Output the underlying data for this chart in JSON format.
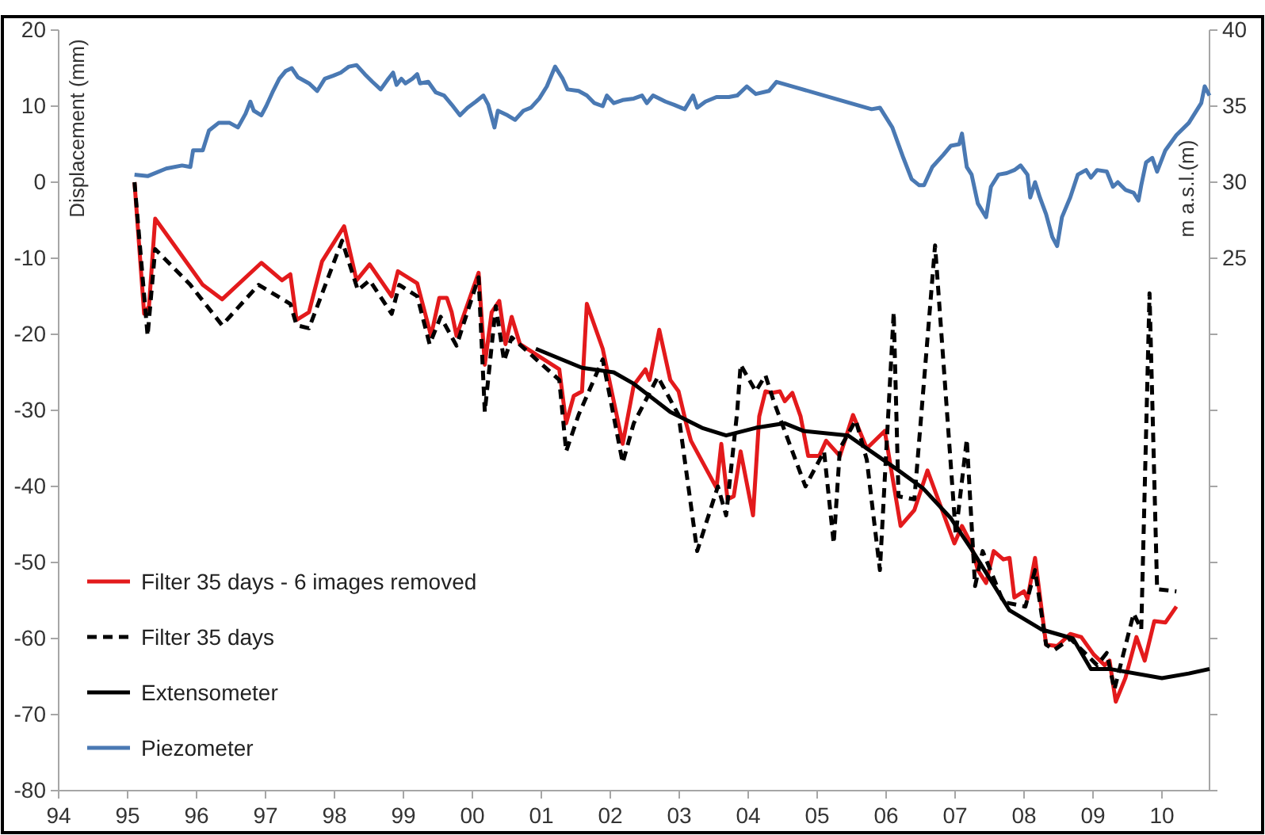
{
  "chart_data": {
    "type": "line",
    "xlabel": null,
    "ylabel": "Displacement (mm)",
    "y2label": "m a.s.l.(m)",
    "legend": "bottom left",
    "grid": false,
    "marker": "none",
    "xlim": [
      1994,
      2010.69
    ],
    "xticks": [
      {
        "value": 1994,
        "label": "94"
      },
      {
        "value": 1995,
        "label": "95"
      },
      {
        "value": 1996,
        "label": "96"
      },
      {
        "value": 1997,
        "label": "97"
      },
      {
        "value": 1998,
        "label": "98"
      },
      {
        "value": 1999,
        "label": "99"
      },
      {
        "value": 2000,
        "label": "00"
      },
      {
        "value": 2001,
        "label": "01"
      },
      {
        "value": 2002,
        "label": "02"
      },
      {
        "value": 2003,
        "label": "03"
      },
      {
        "value": 2004,
        "label": "04"
      },
      {
        "value": 2005,
        "label": "05"
      },
      {
        "value": 2006,
        "label": "06"
      },
      {
        "value": 2007,
        "label": "07"
      },
      {
        "value": 2008,
        "label": "08"
      },
      {
        "value": 2009,
        "label": "09"
      },
      {
        "value": 2010,
        "label": "10"
      }
    ],
    "ylim": [
      -80,
      20
    ],
    "yticks": [
      -80,
      -70,
      -60,
      -50,
      -40,
      -30,
      -20,
      -10,
      0,
      10,
      20
    ],
    "y2lim": [
      -10,
      40
    ],
    "y2ticks": [
      {
        "value": -10,
        "label": null
      },
      {
        "value": -5,
        "label": null
      },
      {
        "value": 0,
        "label": null
      },
      {
        "value": 5,
        "label": null
      },
      {
        "value": 10,
        "label": null
      },
      {
        "value": 15,
        "label": null
      },
      {
        "value": 20,
        "label": null
      },
      25,
      30,
      35,
      40
    ],
    "series": [
      {
        "name": "Filter 35 days - 6 images removed",
        "color": "#e31a1c",
        "line_style": "solid",
        "x": [
          1995.1,
          1995.24,
          1995.31,
          1995.4,
          1996.09,
          1996.37,
          1996.94,
          1997.24,
          1997.36,
          1997.45,
          1997.63,
          1997.82,
          1998.14,
          1998.32,
          1998.51,
          1998.83,
          1998.92,
          1999.2,
          1999.4,
          1999.52,
          1999.63,
          1999.7,
          1999.77,
          2000.09,
          2000.18,
          2000.28,
          2000.39,
          2000.48,
          2000.57,
          2000.69,
          2001.26,
          2001.36,
          2001.47,
          2001.59,
          2001.66,
          2001.89,
          2002.18,
          2002.34,
          2002.51,
          2002.57,
          2002.71,
          2002.87,
          2002.99,
          2003.1,
          2003.17,
          2003.54,
          2003.61,
          2003.7,
          2003.79,
          2003.89,
          2004.07,
          2004.16,
          2004.25,
          2004.34,
          2004.46,
          2004.53,
          2004.64,
          2004.76,
          2004.87,
          2005.03,
          2005.13,
          2005.33,
          2005.52,
          2005.72,
          2005.98,
          2006.21,
          2006.41,
          2006.6,
          2006.99,
          2007.1,
          2007.22,
          2007.33,
          2007.45,
          2007.56,
          2007.7,
          2007.79,
          2007.86,
          2008.0,
          2008.05,
          2008.16,
          2008.32,
          2008.48,
          2008.67,
          2008.83,
          2009.01,
          2009.17,
          2009.24,
          2009.33,
          2009.47,
          2009.63,
          2009.75,
          2009.89,
          2010.05,
          2010.21
        ],
        "values": [
          0,
          -17.3,
          -16.3,
          -4.8,
          -13.5,
          -15.4,
          -10.6,
          -12.9,
          -12.1,
          -18.1,
          -17.1,
          -10.4,
          -5.8,
          -12.9,
          -10.8,
          -15.0,
          -11.7,
          -13.3,
          -20.2,
          -15.2,
          -15.2,
          -17.1,
          -20.2,
          -11.9,
          -24.0,
          -17.1,
          -15.6,
          -21.3,
          -17.7,
          -21.3,
          -24.6,
          -31.7,
          -28.1,
          -27.5,
          -16.0,
          -21.9,
          -34.4,
          -26.7,
          -24.6,
          -26.0,
          -19.4,
          -26.0,
          -27.5,
          -31.7,
          -34.0,
          -40.2,
          -34.4,
          -41.7,
          -41.3,
          -35.4,
          -43.8,
          -30.8,
          -27.5,
          -27.7,
          -27.5,
          -28.8,
          -27.7,
          -30.8,
          -36.0,
          -36.0,
          -34.0,
          -36.0,
          -30.6,
          -35.0,
          -32.7,
          -45.2,
          -43.1,
          -37.9,
          -47.5,
          -45.2,
          -47.3,
          -51.0,
          -52.7,
          -48.5,
          -49.6,
          -49.4,
          -54.6,
          -53.8,
          -54.8,
          -49.4,
          -60.8,
          -61.0,
          -59.4,
          -59.8,
          -62.1,
          -63.5,
          -62.9,
          -68.3,
          -65.2,
          -59.8,
          -62.9,
          -57.7,
          -57.9,
          -55.8
        ]
      },
      {
        "name": "Filter 35 days",
        "color": "#000000",
        "line_style": "dashed",
        "x": [
          1995.1,
          1995.29,
          1995.4,
          1995.91,
          1996.37,
          1996.9,
          1997.36,
          1997.45,
          1997.63,
          1998.11,
          1998.34,
          1998.51,
          1998.83,
          1998.94,
          1999.2,
          1999.38,
          1999.54,
          1999.77,
          2000.09,
          2000.18,
          2000.34,
          2000.46,
          2000.57,
          2001.26,
          2001.36,
          2001.54,
          2001.66,
          2001.89,
          2002.18,
          2002.34,
          2002.69,
          2002.99,
          2003.26,
          2003.56,
          2003.68,
          2003.84,
          2003.89,
          2004.11,
          2004.25,
          2004.37,
          2004.83,
          2005.1,
          2005.24,
          2005.33,
          2005.56,
          2005.72,
          2005.91,
          2006.11,
          2006.18,
          2006.41,
          2006.71,
          2007.01,
          2007.17,
          2007.29,
          2007.4,
          2007.7,
          2008.02,
          2008.16,
          2008.32,
          2008.44,
          2008.67,
          2009.06,
          2009.2,
          2009.31,
          2009.59,
          2009.7,
          2009.82,
          2009.93,
          2010.21
        ],
        "values": [
          0,
          -20.2,
          -8.8,
          -13.5,
          -18.8,
          -13.5,
          -16.0,
          -18.8,
          -19.2,
          -7.7,
          -14.2,
          -12.9,
          -17.3,
          -13.5,
          -15.0,
          -21.3,
          -17.7,
          -21.5,
          -12.5,
          -30.2,
          -16.3,
          -23.5,
          -20.4,
          -26.0,
          -35.4,
          -30.6,
          -28.1,
          -23.3,
          -36.9,
          -31.7,
          -25.6,
          -30.6,
          -48.5,
          -40.0,
          -43.8,
          -30.2,
          -24.0,
          -27.5,
          -25.4,
          -28.8,
          -40.0,
          -35.4,
          -47.5,
          -35.0,
          -31.3,
          -36.5,
          -51.0,
          -17.1,
          -41.3,
          -41.7,
          -8.3,
          -46.3,
          -33.8,
          -53.1,
          -48.5,
          -55.2,
          -55.8,
          -51.0,
          -60.8,
          -61.5,
          -60.0,
          -63.5,
          -61.9,
          -66.7,
          -56.7,
          -58.8,
          -14.6,
          -53.5,
          -53.8
        ]
      },
      {
        "name": "Extensometer",
        "color": "#000000",
        "line_style": "solid",
        "x": [
          2000.92,
          2001.59,
          2002.05,
          2002.34,
          2002.87,
          2003.33,
          2003.68,
          2004.11,
          2004.53,
          2004.8,
          2005.45,
          2006.18,
          2006.53,
          2006.94,
          2007.24,
          2007.79,
          2008.25,
          2008.71,
          2008.97,
          2009.24,
          2010.0,
          2010.39,
          2010.69
        ],
        "values": [
          -21.9,
          -24.4,
          -25.0,
          -26.5,
          -30.2,
          -32.3,
          -33.3,
          -32.3,
          -31.7,
          -32.7,
          -33.3,
          -37.9,
          -40.2,
          -44.2,
          -48.3,
          -56.3,
          -58.8,
          -60.0,
          -64.0,
          -64.0,
          -65.2,
          -64.6,
          -64.0
        ]
      },
      {
        "name": "Piezometer",
        "color": "#4a79b3",
        "line_style": "solid",
        "axis": "y2",
        "x": [
          1995.1,
          1995.29,
          1995.56,
          1995.79,
          1995.91,
          1995.95,
          1996.09,
          1996.18,
          1996.32,
          1996.48,
          1996.6,
          1996.71,
          1996.78,
          1996.83,
          1996.94,
          1997.01,
          1997.1,
          1997.2,
          1997.29,
          1997.38,
          1997.47,
          1997.63,
          1997.75,
          1997.86,
          1997.98,
          1998.09,
          1998.21,
          1998.32,
          1998.44,
          1998.55,
          1998.67,
          1998.78,
          1998.85,
          1998.9,
          1998.97,
          1999.03,
          1999.13,
          1999.2,
          1999.24,
          1999.36,
          1999.47,
          1999.59,
          1999.7,
          1999.82,
          1999.93,
          2000.05,
          2000.16,
          2000.23,
          2000.32,
          2000.37,
          2000.51,
          2000.62,
          2000.74,
          2000.85,
          2000.97,
          2001.08,
          2001.2,
          2001.31,
          2001.38,
          2001.54,
          2001.66,
          2001.77,
          2001.89,
          2001.95,
          2002.05,
          2002.18,
          2002.34,
          2002.46,
          2002.53,
          2002.62,
          2002.8,
          2002.92,
          2003.08,
          2003.2,
          2003.26,
          2003.38,
          2003.54,
          2003.72,
          2003.84,
          2003.98,
          2004.11,
          2004.3,
          2004.41,
          2004.64,
          2005.1,
          2005.56,
          2005.79,
          2005.91,
          2006.09,
          2006.25,
          2006.37,
          2006.48,
          2006.55,
          2006.67,
          2006.83,
          2006.94,
          2007.06,
          2007.1,
          2007.17,
          2007.24,
          2007.33,
          2007.45,
          2007.52,
          2007.63,
          2007.75,
          2007.86,
          2007.95,
          2008.05,
          2008.09,
          2008.16,
          2008.23,
          2008.32,
          2008.41,
          2008.48,
          2008.55,
          2008.67,
          2008.78,
          2008.9,
          2008.97,
          2009.06,
          2009.2,
          2009.29,
          2009.36,
          2009.47,
          2009.59,
          2009.66,
          2009.7,
          2009.77,
          2009.86,
          2009.93,
          2010.05,
          2010.21,
          2010.39,
          2010.57,
          2010.62,
          2010.69
        ],
        "values": [
          30.5,
          30.4,
          30.9,
          31.1,
          31.0,
          32.1,
          32.1,
          33.4,
          33.9,
          33.9,
          33.6,
          34.5,
          35.3,
          34.7,
          34.4,
          35.0,
          35.9,
          36.8,
          37.3,
          37.5,
          36.9,
          36.5,
          36.0,
          36.8,
          37.0,
          37.2,
          37.6,
          37.7,
          37.1,
          36.6,
          36.1,
          36.8,
          37.2,
          36.4,
          36.8,
          36.5,
          36.8,
          37.1,
          36.5,
          36.6,
          35.9,
          35.7,
          35.1,
          34.4,
          34.9,
          35.3,
          35.7,
          35.1,
          33.6,
          34.7,
          34.4,
          34.1,
          34.7,
          34.9,
          35.5,
          36.3,
          37.6,
          36.8,
          36.1,
          36.0,
          35.7,
          35.2,
          35.0,
          35.7,
          35.2,
          35.4,
          35.5,
          35.7,
          35.2,
          35.7,
          35.3,
          35.1,
          34.8,
          35.7,
          34.9,
          35.3,
          35.6,
          35.6,
          35.7,
          36.3,
          35.8,
          36.0,
          36.6,
          36.3,
          35.7,
          35.1,
          34.8,
          34.9,
          33.6,
          31.6,
          30.2,
          29.8,
          29.8,
          31.0,
          31.8,
          32.4,
          32.5,
          33.2,
          31.0,
          30.5,
          28.6,
          27.7,
          29.7,
          30.5,
          30.6,
          30.8,
          31.1,
          30.5,
          29.0,
          30.0,
          29.0,
          27.9,
          26.4,
          25.8,
          27.7,
          29.0,
          30.5,
          30.8,
          30.3,
          30.8,
          30.7,
          29.7,
          30.0,
          29.5,
          29.3,
          28.8,
          29.8,
          31.3,
          31.6,
          30.7,
          32.1,
          33.1,
          33.9,
          35.2,
          36.3,
          35.7
        ]
      }
    ]
  }
}
